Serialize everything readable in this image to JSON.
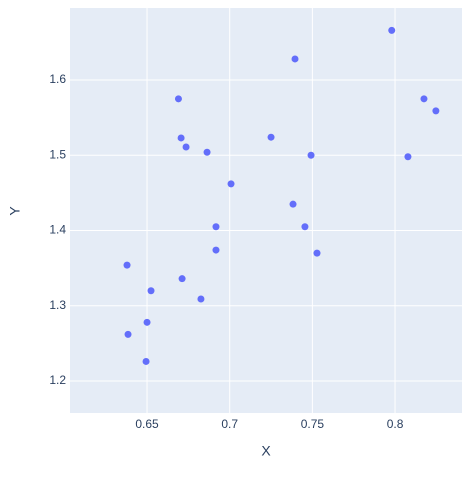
{
  "chart_data": {
    "type": "scatter",
    "x_label": "X",
    "y_label": "Y",
    "x": [
      0.798,
      0.7395,
      0.669,
      0.8175,
      0.8247,
      0.6706,
      0.725,
      0.6736,
      0.6863,
      0.7492,
      0.8078,
      0.7008,
      0.7383,
      0.6917,
      0.7455,
      0.6917,
      0.7528,
      0.6379,
      0.6712,
      0.6524,
      0.6826,
      0.65,
      0.6385,
      0.6494
    ],
    "values": [
      1.666,
      1.628,
      1.575,
      1.575,
      1.559,
      1.523,
      1.524,
      1.511,
      1.504,
      1.5,
      1.498,
      1.462,
      1.435,
      1.405,
      1.405,
      1.374,
      1.37,
      1.354,
      1.336,
      1.32,
      1.309,
      1.278,
      1.262,
      1.226
    ],
    "color": "#636efa",
    "xlim": [
      0.6034,
      0.8405
    ],
    "ylim": [
      1.1575,
      1.6957
    ],
    "xticks": [
      0.65,
      0.7,
      0.75,
      0.8
    ],
    "yticks": [
      1.2,
      1.3,
      1.4,
      1.5,
      1.6
    ],
    "grid": true
  }
}
